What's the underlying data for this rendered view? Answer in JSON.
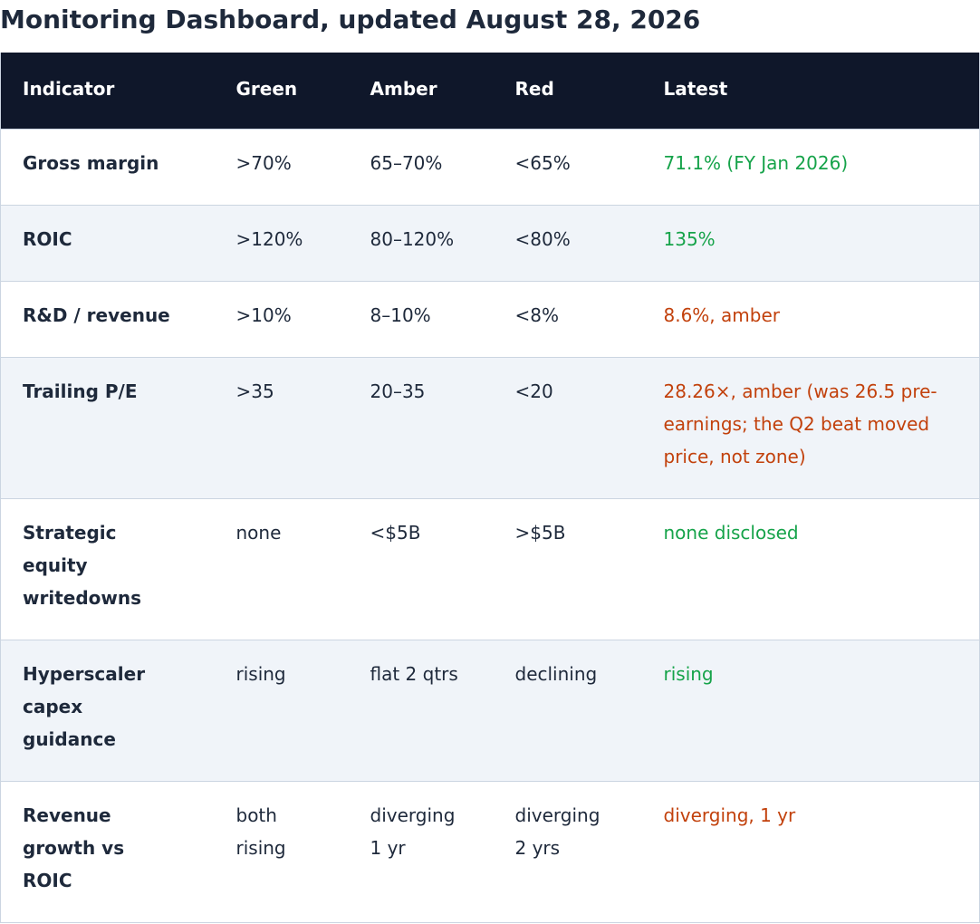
{
  "title": "Monitoring Dashboard, updated August 28, 2026",
  "colors": {
    "header_bg": "#0f172a",
    "alt_row_bg": "#f0f4f9",
    "green_status": "#16a34a",
    "amber_status": "#c2410c",
    "text": "#1e293b"
  },
  "table": {
    "headers": [
      "Indicator",
      "Green",
      "Amber",
      "Red",
      "Latest"
    ],
    "rows": [
      {
        "indicator": "Gross margin",
        "green": ">70%",
        "amber": "65–70%",
        "red": "<65%",
        "latest": "71.1% (FY Jan 2026)",
        "status": "green"
      },
      {
        "indicator": "ROIC",
        "green": ">120%",
        "amber": "80–120%",
        "red": "<80%",
        "latest": "135%",
        "status": "green"
      },
      {
        "indicator": "R&D / revenue",
        "green": ">10%",
        "amber": "8–10%",
        "red": "<8%",
        "latest": "8.6%, amber",
        "status": "amber"
      },
      {
        "indicator": "Trailing P/E",
        "green": ">35",
        "amber": "20–35",
        "red": "<20",
        "latest": "28.26×, amber (was 26.5 pre-earnings; the Q2 beat moved price, not zone)",
        "status": "amber"
      },
      {
        "indicator": "Strategic equity writedowns",
        "green": "none",
        "amber": "<$5B",
        "red": ">$5B",
        "latest": "none disclosed",
        "status": "green"
      },
      {
        "indicator": "Hyperscaler capex guidance",
        "green": "rising",
        "amber": "flat 2 qtrs",
        "red": "declining",
        "latest": "rising",
        "status": "green"
      },
      {
        "indicator": "Revenue growth vs ROIC",
        "green": "both rising",
        "amber": "diverging 1 yr",
        "red": "diverging 2 yrs",
        "latest": "diverging, 1 yr",
        "status": "amber"
      }
    ]
  }
}
